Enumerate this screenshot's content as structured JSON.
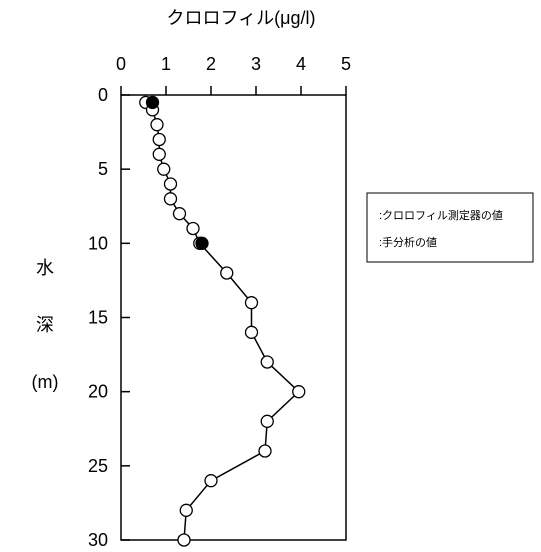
{
  "chart_data": {
    "type": "line",
    "title": "",
    "xlabel": "クロロフィル(μg/l)",
    "ylabel": [
      "水",
      "深",
      "(m)"
    ],
    "xlim": [
      0,
      5
    ],
    "ylim": [
      0,
      30
    ],
    "x_axis_position": "top",
    "y_axis_inverted": true,
    "x_ticks": [
      0,
      1,
      2,
      3,
      4,
      5
    ],
    "x_tick_labels": [
      "0",
      "1",
      "2",
      "3",
      "4",
      "5"
    ],
    "y_ticks": [
      0,
      5,
      10,
      15,
      20,
      25,
      30
    ],
    "y_tick_labels": [
      "0",
      "5",
      "10",
      "15",
      "20",
      "25",
      "30"
    ],
    "grid": false,
    "legend_position": "right",
    "series": [
      {
        "name": ":クロロフィル測定器の値",
        "marker": "open-circle",
        "line": true,
        "color": "#000000",
        "points": [
          {
            "x": 0.55,
            "y": 0.5
          },
          {
            "x": 0.7,
            "y": 1.0
          },
          {
            "x": 0.8,
            "y": 2.0
          },
          {
            "x": 0.85,
            "y": 3.0
          },
          {
            "x": 0.85,
            "y": 4.0
          },
          {
            "x": 0.95,
            "y": 5.0
          },
          {
            "x": 1.1,
            "y": 6.0
          },
          {
            "x": 1.1,
            "y": 7.0
          },
          {
            "x": 1.3,
            "y": 8.0
          },
          {
            "x": 1.6,
            "y": 9.0
          },
          {
            "x": 1.75,
            "y": 10.0
          },
          {
            "x": 2.35,
            "y": 12.0
          },
          {
            "x": 2.9,
            "y": 14.0
          },
          {
            "x": 2.9,
            "y": 16.0
          },
          {
            "x": 3.25,
            "y": 18.0
          },
          {
            "x": 3.95,
            "y": 20.0
          },
          {
            "x": 3.25,
            "y": 22.0
          },
          {
            "x": 3.2,
            "y": 24.0
          },
          {
            "x": 2.0,
            "y": 26.0
          },
          {
            "x": 1.45,
            "y": 28.0
          },
          {
            "x": 1.4,
            "y": 30.0
          }
        ]
      },
      {
        "name": ":手分析の値",
        "marker": "filled-circle",
        "line": false,
        "color": "#000000",
        "points": [
          {
            "x": 0.7,
            "y": 0.5
          },
          {
            "x": 1.8,
            "y": 10.0
          }
        ]
      }
    ]
  },
  "colors": {
    "background": "#ffffff",
    "axis": "#000000",
    "marker_fill_open": "#ffffff",
    "marker_fill_filled": "#000000"
  }
}
